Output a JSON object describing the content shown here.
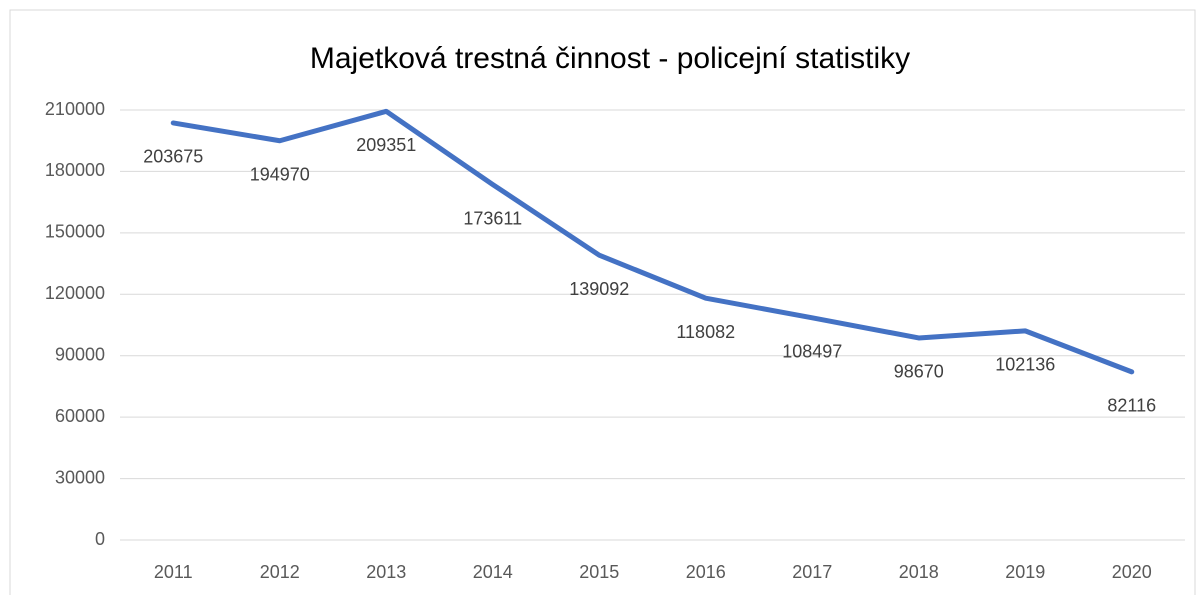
{
  "chart_data": {
    "type": "line",
    "title": "Majetková trestná činnost - policejní statistiky",
    "categories": [
      "2011",
      "2012",
      "2013",
      "2014",
      "2015",
      "2016",
      "2017",
      "2018",
      "2019",
      "2020"
    ],
    "series": [
      {
        "name": "Majetková trestná činnost",
        "color": "#4472c4",
        "values": [
          203675,
          194970,
          209351,
          173611,
          139092,
          118082,
          108497,
          98670,
          102136,
          82116
        ]
      }
    ],
    "ylim": [
      0,
      210000
    ],
    "yticks": [
      0,
      30000,
      60000,
      90000,
      120000,
      150000,
      180000,
      210000
    ],
    "grid": true
  }
}
